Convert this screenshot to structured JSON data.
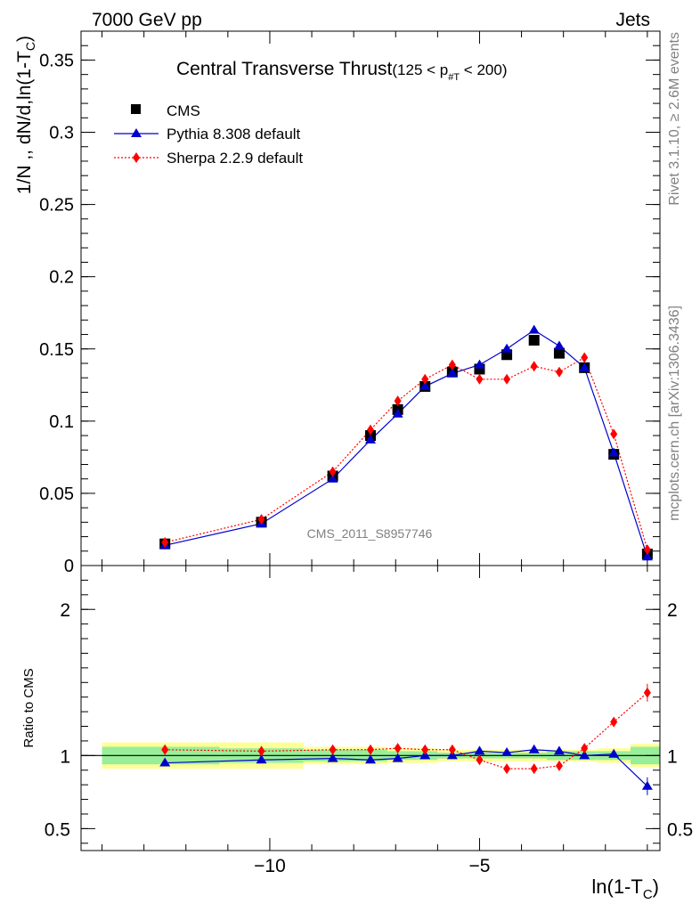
{
  "header": {
    "energy_label": "7000 GeV pp",
    "process_label": "Jets",
    "side_right_top": "Rivet 3.1.10, ≥ 2.6M events",
    "side_right_bottom": "mcplots.cern.ch [arXiv:1306.3436]",
    "analysis_id": "CMS_2011_S8957746"
  },
  "colors": {
    "cms": "#000000",
    "pythia": "#0000cc",
    "sherpa": "#ff0000",
    "band_inner": "#99ee99",
    "band_outer": "#ffff99"
  },
  "chart_data": [
    {
      "type": "line",
      "title": "Central Transverse Thrust",
      "title_range": {
        "lo": "(125 < p",
        "sub": "#T",
        "hi": " < 200)"
      },
      "xlabel": {
        "main": "ln(1-T",
        "sub": "C",
        "tail": ")"
      },
      "ylabel": {
        "main": "1/N ,, dN/d,ln(1-T",
        "sub": "C",
        "tail": ")"
      },
      "xlim": [
        -14.5,
        -0.7
      ],
      "ylim": [
        0,
        0.37
      ],
      "yticks": [
        0,
        0.05,
        0.1,
        0.15,
        0.2,
        0.25,
        0.3,
        0.35
      ],
      "ytick_labels": [
        "0",
        "0.05",
        "0.1",
        "0.15",
        "0.2",
        "0.25",
        "0.3",
        "0.35"
      ],
      "legend_position": "top-left",
      "x": [
        -12.5,
        -10.2,
        -8.5,
        -7.6,
        -6.95,
        -6.3,
        -5.65,
        -5.0,
        -4.35,
        -3.7,
        -3.1,
        -2.5,
        -1.8,
        -1.0
      ],
      "series": [
        {
          "name": "CMS",
          "marker": "square",
          "values": [
            0.015,
            0.03,
            0.062,
            0.09,
            0.108,
            0.124,
            0.134,
            0.136,
            0.146,
            0.156,
            0.147,
            0.137,
            0.077,
            0.008
          ]
        },
        {
          "name": "Pythia 8.308 default",
          "marker": "triangle",
          "values": [
            0.014,
            0.029,
            0.06,
            0.087,
            0.105,
            0.124,
            0.133,
            0.139,
            0.15,
            0.163,
            0.152,
            0.137,
            0.078,
            0.006
          ]
        },
        {
          "name": "Sherpa 2.2.9 default",
          "marker": "diamond",
          "values": [
            0.016,
            0.032,
            0.065,
            0.094,
            0.114,
            0.129,
            0.139,
            0.129,
            0.129,
            0.138,
            0.134,
            0.144,
            0.091,
            0.011
          ]
        }
      ]
    },
    {
      "type": "line",
      "title": "",
      "ylabel": "Ratio to CMS",
      "xlim": [
        -14.5,
        -0.7
      ],
      "ylim": [
        0.35,
        2.3
      ],
      "yticks": [
        0.5,
        1,
        2
      ],
      "ytick_labels": [
        "0.5",
        "1",
        "2"
      ],
      "xticks": [
        -10,
        -5
      ],
      "xtick_labels": [
        "−10",
        "−5"
      ],
      "x": [
        -12.5,
        -10.2,
        -8.5,
        -7.6,
        -6.95,
        -6.3,
        -5.65,
        -5.0,
        -4.35,
        -3.7,
        -3.1,
        -2.5,
        -1.8,
        -1.0
      ],
      "series": [
        {
          "name": "Pythia 8.308 default",
          "marker": "triangle",
          "values": [
            0.95,
            0.97,
            0.98,
            0.97,
            0.98,
            1.0,
            1.0,
            1.03,
            1.02,
            1.04,
            1.03,
            1.0,
            1.01,
            0.79
          ]
        },
        {
          "name": "Sherpa 2.2.9 default",
          "marker": "diamond",
          "values": [
            1.04,
            1.03,
            1.04,
            1.04,
            1.05,
            1.04,
            1.04,
            0.97,
            0.91,
            0.91,
            0.93,
            1.05,
            1.23,
            1.43
          ]
        }
      ],
      "band_bins": [
        {
          "lo": -14.0,
          "hi": -11.2,
          "inner": 0.06,
          "outer": 0.09
        },
        {
          "lo": -11.2,
          "hi": -9.2,
          "inner": 0.05,
          "outer": 0.09
        },
        {
          "lo": -9.2,
          "hi": -7.2,
          "inner": 0.04,
          "outer": 0.06
        },
        {
          "lo": -7.2,
          "hi": -6.0,
          "inner": 0.03,
          "outer": 0.05
        },
        {
          "lo": -6.0,
          "hi": -3.4,
          "inner": 0.02,
          "outer": 0.04
        },
        {
          "lo": -3.4,
          "hi": -2.2,
          "inner": 0.03,
          "outer": 0.04
        },
        {
          "lo": -2.2,
          "hi": -1.4,
          "inner": 0.03,
          "outer": 0.05
        },
        {
          "lo": -1.4,
          "hi": -0.7,
          "inner": 0.06,
          "outer": 0.08
        }
      ]
    }
  ]
}
